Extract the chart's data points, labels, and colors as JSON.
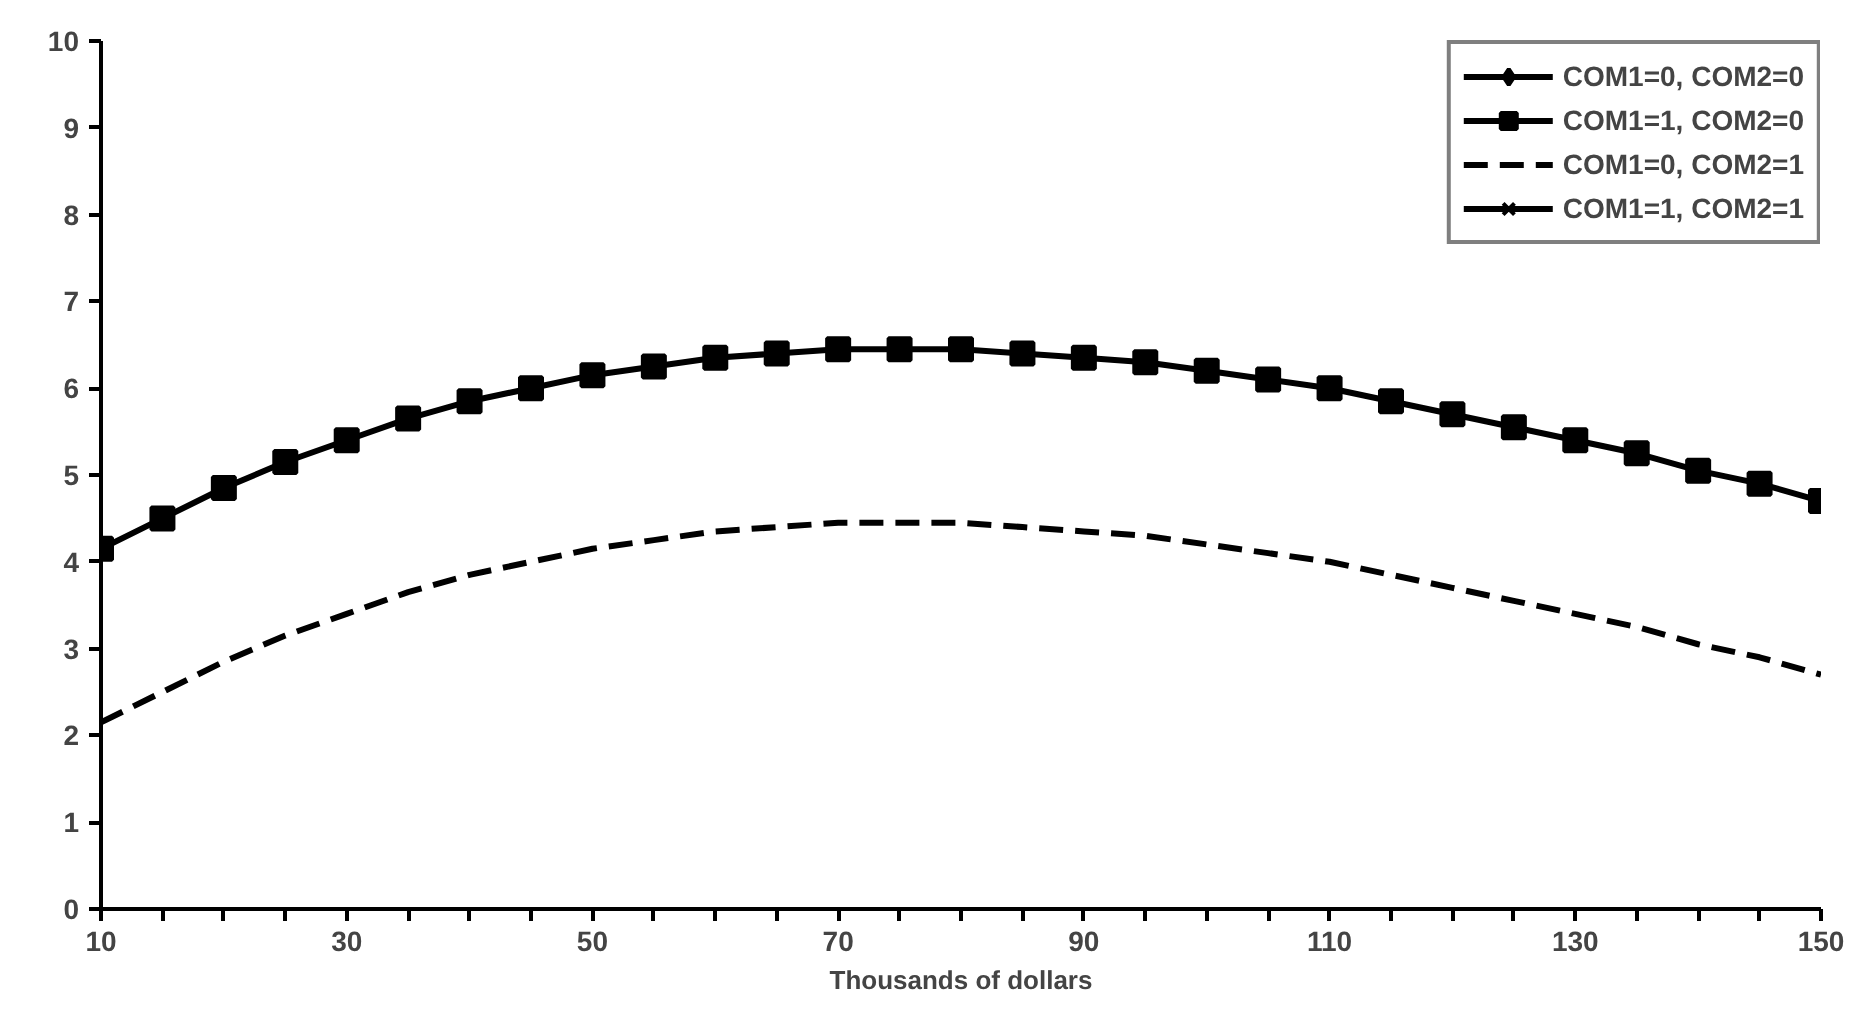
{
  "chart_data": {
    "type": "line",
    "xlabel": "Thousands of dollars",
    "x": [
      10,
      15,
      20,
      25,
      30,
      35,
      40,
      45,
      50,
      55,
      60,
      65,
      70,
      75,
      80,
      85,
      90,
      95,
      100,
      105,
      110,
      115,
      120,
      125,
      130,
      135,
      140,
      145,
      150
    ],
    "xlim": [
      10,
      150
    ],
    "xticks": [
      10,
      {
        "value": 15,
        "label": null
      },
      {
        "value": 20,
        "label": null
      },
      {
        "value": 25,
        "label": null
      },
      30,
      {
        "value": 35,
        "label": null
      },
      {
        "value": 40,
        "label": null
      },
      {
        "value": 45,
        "label": null
      },
      50,
      {
        "value": 55,
        "label": null
      },
      {
        "value": 60,
        "label": null
      },
      {
        "value": 65,
        "label": null
      },
      70,
      {
        "value": 75,
        "label": null
      },
      {
        "value": 80,
        "label": null
      },
      {
        "value": 85,
        "label": null
      },
      90,
      {
        "value": 95,
        "label": null
      },
      {
        "value": 100,
        "label": null
      },
      {
        "value": 105,
        "label": null
      },
      110,
      {
        "value": 115,
        "label": null
      },
      {
        "value": 120,
        "label": null
      },
      {
        "value": 125,
        "label": null
      },
      130,
      {
        "value": 135,
        "label": null
      },
      {
        "value": 140,
        "label": null
      },
      {
        "value": 145,
        "label": null
      },
      150
    ],
    "ylim": [
      0,
      10
    ],
    "yticks": [
      0,
      1,
      2,
      3,
      4,
      5,
      6,
      7,
      8,
      9,
      10
    ],
    "grid": false,
    "legend": "top right",
    "series": [
      {
        "name": "COM1=0, COM2=0",
        "color": "#000000",
        "marker": "diamond",
        "line_style": "solid",
        "values": [
          null,
          null,
          null,
          null,
          null,
          null,
          null,
          null,
          null,
          null,
          null,
          null,
          null,
          null,
          null,
          null,
          null,
          null,
          null,
          null,
          null,
          null,
          null,
          null,
          null,
          null,
          null,
          null,
          null
        ]
      },
      {
        "name": "COM1=1, COM2=0",
        "color": "#000000",
        "marker": "square",
        "line_style": "solid",
        "values": [
          4.15,
          4.5,
          4.85,
          5.15,
          5.4,
          5.65,
          5.85,
          6.0,
          6.15,
          6.25,
          6.35,
          6.4,
          6.45,
          6.45,
          6.45,
          6.4,
          6.35,
          6.3,
          6.2,
          6.1,
          6.0,
          5.85,
          5.7,
          5.55,
          5.4,
          5.25,
          5.05,
          4.9,
          4.7
        ]
      },
      {
        "name": "COM1=0, COM2=1",
        "color": "#000000",
        "marker": "none",
        "line_style": "dashed",
        "values": [
          2.15,
          2.5,
          2.85,
          3.15,
          3.4,
          3.65,
          3.85,
          4.0,
          4.15,
          4.25,
          4.35,
          4.4,
          4.45,
          4.45,
          4.45,
          4.4,
          4.35,
          4.3,
          4.2,
          4.1,
          4.0,
          3.85,
          3.7,
          3.55,
          3.4,
          3.25,
          3.05,
          2.9,
          2.7
        ]
      },
      {
        "name": "COM1=1, COM2=1",
        "color": "#000000",
        "marker": "cross",
        "line_style": "solid",
        "values": [
          null,
          null,
          null,
          null,
          null,
          null,
          null,
          null,
          null,
          null,
          null,
          null,
          null,
          null,
          null,
          null,
          null,
          null,
          null,
          null,
          null,
          null,
          null,
          null,
          null,
          null,
          null,
          null,
          null
        ]
      }
    ]
  }
}
